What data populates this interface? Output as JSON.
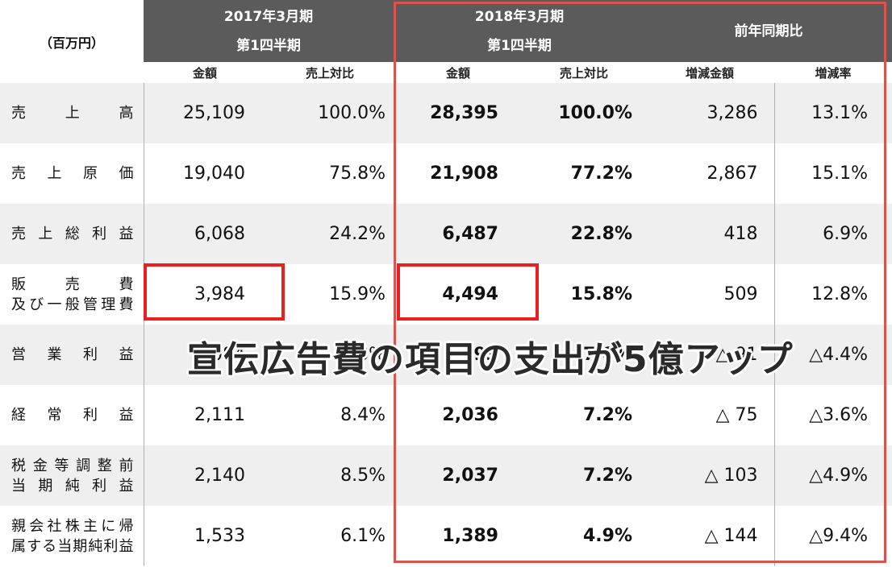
{
  "header": {
    "unit": "（百万円）",
    "period_2017": [
      "2017年3月期",
      "第1四半期"
    ],
    "period_2018": [
      "2018年3月期",
      "第1四半期"
    ],
    "yoy": "前年同期比",
    "col_amount": "金額",
    "col_ratio": "売上対比",
    "col_change_amount": "増減金額",
    "col_change_rate": "増減率"
  },
  "rows": [
    {
      "label": [
        "売上高"
      ],
      "a2017": "25,109",
      "r2017": "100.0%",
      "a2018": "28,395",
      "r2018": "100.0%",
      "chg": "3,286",
      "rate": "13.1%"
    },
    {
      "label": [
        "売上原価"
      ],
      "a2017": "19,040",
      "r2017": "75.8%",
      "a2018": "21,908",
      "r2018": "77.2%",
      "chg": "2,867",
      "rate": "15.1%"
    },
    {
      "label": [
        "売上総利益"
      ],
      "a2017": "6,068",
      "r2017": "24.2%",
      "a2018": "6,487",
      "r2018": "22.8%",
      "chg": "418",
      "rate": "6.9%"
    },
    {
      "label": [
        "販売費",
        "及び一般管理費"
      ],
      "a2017": "3,984",
      "r2017": "15.9%",
      "a2018": "4,494",
      "r2018": "15.8%",
      "chg": "509",
      "rate": "12.8%"
    },
    {
      "label": [
        "営業利益"
      ],
      "a2017": "2,084",
      "r2017": "8.3%",
      "a2018": "1,993",
      "r2018": "7.0%",
      "chg": "△ 91",
      "rate": "△4.4%"
    },
    {
      "label": [
        "経常利益"
      ],
      "a2017": "2,111",
      "r2017": "8.4%",
      "a2018": "2,036",
      "r2018": "7.2%",
      "chg": "△ 75",
      "rate": "△3.6%"
    },
    {
      "label": [
        "税金等調整前",
        "当期純利益"
      ],
      "a2017": "2,140",
      "r2017": "8.5%",
      "a2018": "2,037",
      "r2018": "7.2%",
      "chg": "△ 103",
      "rate": "△4.9%"
    },
    {
      "label": [
        "親会社株主に帰",
        "属する当期純利益"
      ],
      "a2017": "1,533",
      "r2017": "6.1%",
      "a2018": "1,389",
      "r2018": "4.9%",
      "chg": "△ 144",
      "rate": "△9.4%"
    }
  ],
  "overlay_caption": "宣伝広告費の項目の支出が5億アップ",
  "colors": {
    "header_bg": "#5b5b5b",
    "highlight_frame": "#d9534f",
    "highlight_box": "#e82020",
    "row_shade": "#efefef"
  }
}
